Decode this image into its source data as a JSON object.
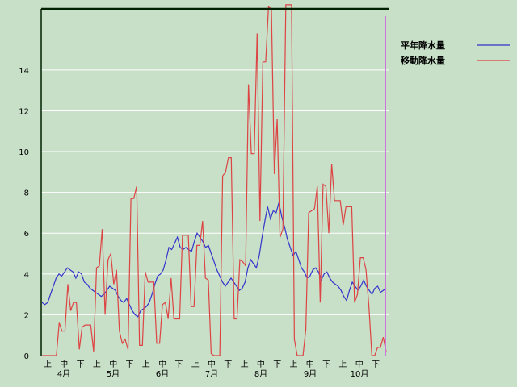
{
  "chart_data": {
    "type": "line",
    "title": "",
    "ylim": [
      0,
      17
    ],
    "yticks": [
      0,
      2,
      4,
      6,
      8,
      10,
      12,
      14
    ],
    "grid": true,
    "legend_position": "right",
    "x_decade_labels": [
      "上",
      "中",
      "下",
      "上",
      "中",
      "下",
      "上",
      "中",
      "下",
      "上",
      "中",
      "下",
      "上",
      "中",
      "下",
      "上",
      "中",
      "下",
      "上",
      "中",
      "下"
    ],
    "x_month_labels": [
      "4月",
      "5月",
      "6月",
      "7月",
      "8月",
      "9月",
      "10月"
    ],
    "series": [
      {
        "name": "平年降水量",
        "color": "#3333cc",
        "values": [
          2.6,
          2.5,
          2.6,
          3,
          3.4,
          3.8,
          4,
          3.9,
          4.1,
          4.3,
          4.2,
          4.1,
          3.8,
          4.1,
          4,
          3.6,
          3.5,
          3.3,
          3.2,
          3.1,
          3,
          2.9,
          3,
          3.2,
          3.4,
          3.3,
          3.2,
          2.9,
          2.7,
          2.6,
          2.8,
          2.5,
          2.2,
          2,
          1.9,
          2.2,
          2.3,
          2.4,
          2.6,
          3,
          3.5,
          3.9,
          4,
          4.2,
          4.7,
          5.3,
          5.2,
          5.5,
          5.8,
          5.3,
          5.2,
          5.3,
          5.2,
          5.1,
          5.6,
          6,
          5.8,
          5.6,
          5.3,
          5.4,
          5,
          4.6,
          4.2,
          3.9,
          3.6,
          3.4,
          3.6,
          3.8,
          3.6,
          3.4,
          3.2,
          3.3,
          3.6,
          4.3,
          4.7,
          4.5,
          4.3,
          4.9,
          5.8,
          6.6,
          7.3,
          6.7,
          7.1,
          7,
          7.5,
          6.8,
          6.3,
          5.7,
          5.3,
          4.9,
          5.1,
          4.7,
          4.3,
          4.1,
          3.8,
          3.9,
          4.2,
          4.3,
          4.1,
          3.7,
          4,
          4.1,
          3.8,
          3.6,
          3.5,
          3.4,
          3.2,
          2.9,
          2.7,
          3.2,
          3.6,
          3.4,
          3.2,
          3.4,
          3.7,
          3.4,
          3.2,
          3,
          3.3,
          3.4,
          3.1,
          3.2,
          3.3
        ]
      },
      {
        "name": "移動降水量",
        "color": "#dd4444",
        "values": [
          0,
          0,
          0,
          0,
          0,
          0,
          1.6,
          1.2,
          1.2,
          3.5,
          2.2,
          2.6,
          2.6,
          0.3,
          1.4,
          1.5,
          1.5,
          1.5,
          0.2,
          4.3,
          4.4,
          6.2,
          2,
          4.7,
          5,
          3.5,
          4.2,
          1.2,
          0.6,
          0.8,
          0.3,
          7.7,
          7.7,
          8.3,
          0.5,
          0.5,
          4.1,
          3.6,
          3.6,
          3.6,
          0.6,
          0.6,
          2.5,
          2.6,
          1.8,
          3.8,
          1.8,
          1.8,
          1.8,
          5.9,
          5.9,
          5.9,
          2.4,
          2.4,
          5.4,
          5.4,
          6.6,
          3.8,
          3.7,
          0.1,
          0,
          0,
          0,
          8.8,
          9,
          9.7,
          9.7,
          1.8,
          1.8,
          4.7,
          4.6,
          4.4,
          13.3,
          9.9,
          9.9,
          15.8,
          6.6,
          14.4,
          14.4,
          17.1,
          17,
          8.9,
          11.6,
          5.8,
          6.2,
          17.2,
          17.2,
          17.2,
          0.8,
          0,
          0,
          0,
          1.3,
          7,
          7.1,
          7.2,
          8.3,
          2.6,
          8.4,
          8.3,
          6,
          9.4,
          7.6,
          7.6,
          7.6,
          6.4,
          7.3,
          7.3,
          7.3,
          2.6,
          3,
          4.8,
          4.8,
          4.2,
          2.4,
          0,
          0,
          0.4,
          0.4,
          0.9,
          0.2
        ]
      }
    ]
  }
}
